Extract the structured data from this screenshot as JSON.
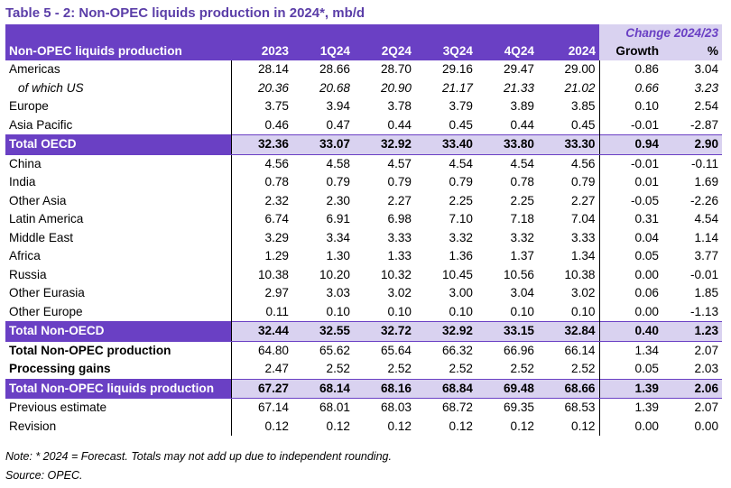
{
  "title": "Table 5 - 2: Non-OPEC liquids production in 2024*, mb/d",
  "header": {
    "change_label": "Change 2024/23",
    "row_label": "Non-OPEC liquids production",
    "columns": [
      "2023",
      "1Q24",
      "2Q24",
      "3Q24",
      "4Q24",
      "2024",
      "Growth",
      "%"
    ]
  },
  "rows": [
    {
      "label": "Americas",
      "values": [
        "28.14",
        "28.66",
        "28.70",
        "29.16",
        "29.47",
        "29.00",
        "0.86",
        "3.04"
      ]
    },
    {
      "label": "of which US",
      "values": [
        "20.36",
        "20.68",
        "20.90",
        "21.17",
        "21.33",
        "21.02",
        "0.66",
        "3.23"
      ]
    },
    {
      "label": "Europe",
      "values": [
        "3.75",
        "3.94",
        "3.78",
        "3.79",
        "3.89",
        "3.85",
        "0.10",
        "2.54"
      ]
    },
    {
      "label": "Asia Pacific",
      "values": [
        "0.46",
        "0.47",
        "0.44",
        "0.45",
        "0.44",
        "0.45",
        "-0.01",
        "-2.87"
      ]
    },
    {
      "label": "Total OECD",
      "values": [
        "32.36",
        "33.07",
        "32.92",
        "33.40",
        "33.80",
        "33.30",
        "0.94",
        "2.90"
      ]
    },
    {
      "label": "China",
      "values": [
        "4.56",
        "4.58",
        "4.57",
        "4.54",
        "4.54",
        "4.56",
        "-0.01",
        "-0.11"
      ]
    },
    {
      "label": "India",
      "values": [
        "0.78",
        "0.79",
        "0.79",
        "0.79",
        "0.78",
        "0.79",
        "0.01",
        "1.69"
      ]
    },
    {
      "label": "Other Asia",
      "values": [
        "2.32",
        "2.30",
        "2.27",
        "2.25",
        "2.25",
        "2.27",
        "-0.05",
        "-2.26"
      ]
    },
    {
      "label": "Latin America",
      "values": [
        "6.74",
        "6.91",
        "6.98",
        "7.10",
        "7.18",
        "7.04",
        "0.31",
        "4.54"
      ]
    },
    {
      "label": "Middle East",
      "values": [
        "3.29",
        "3.34",
        "3.33",
        "3.32",
        "3.32",
        "3.33",
        "0.04",
        "1.14"
      ]
    },
    {
      "label": "Africa",
      "values": [
        "1.29",
        "1.30",
        "1.33",
        "1.36",
        "1.37",
        "1.34",
        "0.05",
        "3.77"
      ]
    },
    {
      "label": "Russia",
      "values": [
        "10.38",
        "10.20",
        "10.32",
        "10.45",
        "10.56",
        "10.38",
        "0.00",
        "-0.01"
      ]
    },
    {
      "label": "Other Eurasia",
      "values": [
        "2.97",
        "3.03",
        "3.02",
        "3.00",
        "3.04",
        "3.02",
        "0.06",
        "1.85"
      ]
    },
    {
      "label": "Other Europe",
      "values": [
        "0.11",
        "0.10",
        "0.10",
        "0.10",
        "0.10",
        "0.10",
        "0.00",
        "-1.13"
      ]
    },
    {
      "label": "Total Non-OECD",
      "values": [
        "32.44",
        "32.55",
        "32.72",
        "32.92",
        "33.15",
        "32.84",
        "0.40",
        "1.23"
      ]
    },
    {
      "label": "Total Non-OPEC production",
      "values": [
        "64.80",
        "65.62",
        "65.64",
        "66.32",
        "66.96",
        "66.14",
        "1.34",
        "2.07"
      ]
    },
    {
      "label": "Processing gains",
      "values": [
        "2.47",
        "2.52",
        "2.52",
        "2.52",
        "2.52",
        "2.52",
        "0.05",
        "2.03"
      ]
    },
    {
      "label": "Total Non-OPEC liquids production",
      "values": [
        "67.27",
        "68.14",
        "68.16",
        "68.84",
        "69.48",
        "68.66",
        "1.39",
        "2.06"
      ]
    },
    {
      "label": "Previous estimate",
      "values": [
        "67.14",
        "68.01",
        "68.03",
        "68.72",
        "69.35",
        "68.53",
        "1.39",
        "2.07"
      ]
    },
    {
      "label": "Revision",
      "values": [
        "0.12",
        "0.12",
        "0.12",
        "0.12",
        "0.12",
        "0.12",
        "0.00",
        "0.00"
      ]
    }
  ],
  "footer": {
    "note": "Note: * 2024 = Forecast. Totals may not add up due to independent rounding.",
    "source": "Source: OPEC."
  },
  "colors": {
    "accent": "#6a40c4",
    "highlight": "#d9d2f0"
  }
}
